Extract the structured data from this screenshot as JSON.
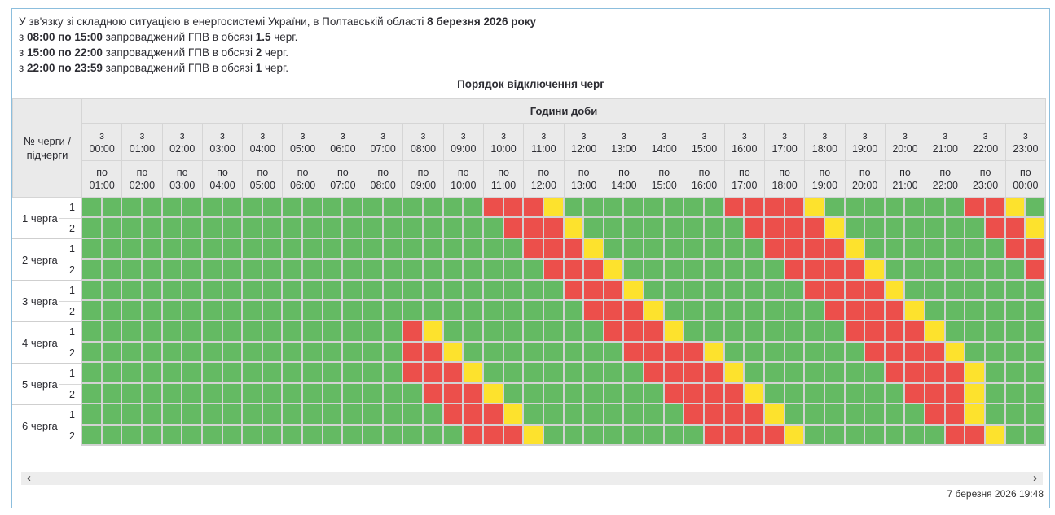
{
  "intro": {
    "lines": [
      {
        "segments": [
          {
            "t": "У зв'язку зі складною ситуацією в енергосистемі України, в Полтавській області ",
            "b": false
          },
          {
            "t": "8 березня 2026 року",
            "b": true
          }
        ]
      },
      {
        "segments": [
          {
            "t": "з ",
            "b": false
          },
          {
            "t": "08:00 по 15:00",
            "b": true
          },
          {
            "t": " запроваджений ГПВ в обсязі ",
            "b": false
          },
          {
            "t": "1.5",
            "b": true
          },
          {
            "t": " черг.",
            "b": false
          }
        ]
      },
      {
        "segments": [
          {
            "t": "з ",
            "b": false
          },
          {
            "t": "15:00 по 22:00",
            "b": true
          },
          {
            "t": " запроваджений ГПВ в обсязі ",
            "b": false
          },
          {
            "t": "2",
            "b": true
          },
          {
            "t": " черг.",
            "b": false
          }
        ]
      },
      {
        "segments": [
          {
            "t": "з ",
            "b": false
          },
          {
            "t": "22:00 по 23:59",
            "b": true
          },
          {
            "t": " запроваджений ГПВ в обсязі ",
            "b": false
          },
          {
            "t": "1",
            "b": true
          },
          {
            "t": " черг.",
            "b": false
          }
        ]
      }
    ]
  },
  "title": "Порядок відключення черг",
  "table": {
    "corner": "№ черги /\nпідчерги",
    "hours_group_label": "Години доби",
    "from_prefix": "з",
    "to_prefix": "по",
    "hours": [
      {
        "from": "00:00",
        "to": "01:00"
      },
      {
        "from": "01:00",
        "to": "02:00"
      },
      {
        "from": "02:00",
        "to": "03:00"
      },
      {
        "from": "03:00",
        "to": "04:00"
      },
      {
        "from": "04:00",
        "to": "05:00"
      },
      {
        "from": "05:00",
        "to": "06:00"
      },
      {
        "from": "06:00",
        "to": "07:00"
      },
      {
        "from": "07:00",
        "to": "08:00"
      },
      {
        "from": "08:00",
        "to": "09:00"
      },
      {
        "from": "09:00",
        "to": "10:00"
      },
      {
        "from": "10:00",
        "to": "11:00"
      },
      {
        "from": "11:00",
        "to": "12:00"
      },
      {
        "from": "12:00",
        "to": "13:00"
      },
      {
        "from": "13:00",
        "to": "14:00"
      },
      {
        "from": "14:00",
        "to": "15:00"
      },
      {
        "from": "15:00",
        "to": "16:00"
      },
      {
        "from": "16:00",
        "to": "17:00"
      },
      {
        "from": "17:00",
        "to": "18:00"
      },
      {
        "from": "18:00",
        "to": "19:00"
      },
      {
        "from": "19:00",
        "to": "20:00"
      },
      {
        "from": "20:00",
        "to": "21:00"
      },
      {
        "from": "21:00",
        "to": "22:00"
      },
      {
        "from": "22:00",
        "to": "23:00"
      },
      {
        "from": "23:00",
        "to": "00:00"
      }
    ],
    "queues": [
      {
        "name": "1 черга",
        "subs": [
          "1",
          "2"
        ]
      },
      {
        "name": "2 черга",
        "subs": [
          "1",
          "2"
        ]
      },
      {
        "name": "3 черга",
        "subs": [
          "1",
          "2"
        ]
      },
      {
        "name": "4 черга",
        "subs": [
          "1",
          "2"
        ]
      },
      {
        "name": "5 черга",
        "subs": [
          "1",
          "2"
        ]
      },
      {
        "name": "6 черга",
        "subs": [
          "1",
          "2"
        ]
      }
    ],
    "cell_colors": {
      "G": "#64ba63",
      "Y": "#fde22d",
      "R": "#ec4f4b"
    },
    "matrix": [
      "GGGGGGGGGGGGGGGGGGGGRRRYGGGGGGGGRRRRYGGGGGGGRRYG",
      "GGGGGGGGGGGGGGGGGGGGGRRRYGGGGGGGGRRRRYGGGGGGGRRY",
      "GGGGGGGGGGGGGGGGGGGGGGRRRYGGGGGGGGRRRRYGGGGGGGRR",
      "GGGGGGGGGGGGGGGGGGGGGGGRRRYGGGGGGGGRRRRYGGGGGGGR",
      "GGGGGGGGGGGGGGGGGGGGGGGGRRRYGGGGGGGGRRRRYGGGGGGG",
      "GGGGGGGGGGGGGGGGGGGGGGGGGRRRYGGGGGGGGRRRRYGGGGGG",
      "GGGGGGGGGGGGGGGGRYGGGGGGGGRRRYGGGGGGGGRRRRYGGGGG",
      "GGGGGGGGGGGGGGGGRRYGGGGGGGGRRRRYGGGGGGGRRRRYGGGG",
      "GGGGGGGGGGGGGGGGRRRYGGGGGGGGRRRRYGGGGGGGRRRRYGGG",
      "GGGGGGGGGGGGGGGGGRRRYGGGGGGGGRRRRYGGGGGGGRRRYGGG",
      "GGGGGGGGGGGGGGGGGGRRRYGGGGGGGGRRRRYGGGGGGGRRYGGG",
      "GGGGGGGGGGGGGGGGGGGRRRYGGGGGGGGRRRRYGGGGGGGRRYGG"
    ]
  },
  "scrollbar": {
    "left_icon": "‹",
    "right_icon": "›"
  },
  "footer": {
    "timestamp": "7 березня 2026 19:48"
  },
  "ui_colors": {
    "container_border": "#8cbedd",
    "header_bg": "#eaeaea",
    "header_line": "#d5d5d5",
    "grid_line": "#d2d2d2",
    "scrollbar_bg": "#ededed",
    "text": "#2d2d33"
  }
}
